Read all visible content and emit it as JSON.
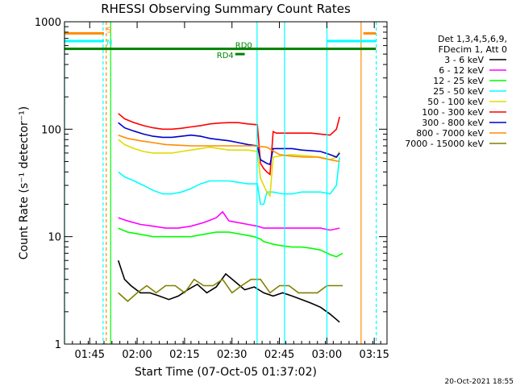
{
  "chart_data": {
    "type": "line",
    "title": "RHESSI Observing Summary Count Rates",
    "xlabel": "Start Time (07-Oct-05 01:37:02)",
    "ylabel": "Count Rate (s⁻¹ detector⁻¹)",
    "yscale": "log",
    "ylim": [
      1,
      1000
    ],
    "xlim_minutes_after_start": [
      0,
      102
    ],
    "x_tick_labels": [
      {
        "label": "01:45",
        "minute": 7.97
      },
      {
        "label": "02:00",
        "minute": 22.97
      },
      {
        "label": "02:15",
        "minute": 37.97
      },
      {
        "label": "02:30",
        "minute": 52.97
      },
      {
        "label": "02:45",
        "minute": 67.97
      },
      {
        "label": "03:00",
        "minute": 82.97
      },
      {
        "label": "03:15",
        "minute": 97.97
      }
    ],
    "y_tick_labels": [
      {
        "label": "1",
        "value": 1
      },
      {
        "label": "10",
        "value": 10
      },
      {
        "label": "100",
        "value": 100
      },
      {
        "label": "1000",
        "value": 1000
      }
    ],
    "legend_header": [
      "Det 1,3,4,5,6,9,",
      "FDecim 1, Att 0"
    ],
    "legend_position": "right",
    "series": [
      {
        "name": "3 - 6 keV",
        "color": "#000000",
        "x": [
          17,
          19,
          21,
          24,
          27,
          30,
          33,
          36,
          39,
          42,
          45,
          48,
          51,
          54,
          57,
          60,
          63,
          66,
          69,
          72,
          75,
          78,
          81,
          84,
          87
        ],
        "y": [
          6,
          4,
          3.5,
          3,
          3,
          2.8,
          2.6,
          2.8,
          3.2,
          3.6,
          3,
          3.4,
          4.5,
          3.8,
          3.2,
          3.4,
          3,
          2.8,
          3,
          2.8,
          2.6,
          2.4,
          2.2,
          1.9,
          1.6
        ]
      },
      {
        "name": "6 - 12 keV",
        "color": "#ff00ff",
        "x": [
          17,
          20,
          24,
          28,
          32,
          36,
          40,
          44,
          48,
          50,
          52,
          55,
          58,
          61,
          63,
          66,
          69,
          72,
          75,
          78,
          81,
          84,
          87
        ],
        "y": [
          15,
          14,
          13,
          12.5,
          12,
          12,
          12.5,
          13.5,
          15,
          17,
          14,
          13.5,
          13,
          12.5,
          12,
          12,
          12,
          12,
          12,
          12,
          12,
          11.5,
          12
        ]
      },
      {
        "name": "12 - 25 keV",
        "color": "#00ff00",
        "x": [
          17,
          20,
          24,
          28,
          32,
          36,
          40,
          44,
          48,
          52,
          56,
          60,
          62,
          63,
          66,
          69,
          72,
          75,
          78,
          81,
          84,
          86,
          88
        ],
        "y": [
          12,
          11,
          10.5,
          10,
          10,
          10,
          10,
          10.5,
          11,
          11,
          10.5,
          10,
          9.5,
          9,
          8.5,
          8.2,
          8,
          8,
          7.8,
          7.5,
          6.8,
          6.5,
          7
        ]
      },
      {
        "name": "25 - 50 keV",
        "color": "#00ffff",
        "x": [
          17,
          19,
          22,
          25,
          28,
          31,
          34,
          37,
          40,
          43,
          46,
          49,
          52,
          55,
          58,
          61,
          62,
          63,
          64,
          66,
          69,
          72,
          75,
          78,
          81,
          84,
          86,
          87
        ],
        "y": [
          40,
          36,
          33,
          30,
          27,
          25,
          25,
          26,
          28,
          31,
          33,
          33,
          33,
          32,
          31,
          31,
          20,
          20,
          26,
          26,
          25,
          25,
          26,
          26,
          26,
          25,
          30,
          55
        ]
      },
      {
        "name": "50 - 100 keV",
        "color": "#dddd00",
        "x": [
          17,
          19,
          22,
          25,
          28,
          31,
          34,
          37,
          40,
          43,
          46,
          49,
          52,
          55,
          58,
          61,
          62,
          63,
          64,
          65,
          66,
          69,
          72,
          75,
          78,
          81,
          84,
          86,
          87
        ],
        "y": [
          80,
          72,
          66,
          62,
          60,
          60,
          60,
          62,
          64,
          66,
          68,
          66,
          64,
          64,
          64,
          62,
          35,
          30,
          26,
          24,
          55,
          57,
          58,
          57,
          56,
          55,
          52,
          55,
          62
        ]
      },
      {
        "name": "100 - 300 keV",
        "color": "#ff0000",
        "x": [
          17,
          19,
          22,
          25,
          28,
          31,
          34,
          37,
          40,
          43,
          46,
          49,
          52,
          55,
          58,
          61,
          62,
          63,
          64,
          65,
          66,
          67,
          69,
          72,
          75,
          78,
          81,
          84,
          86,
          87
        ],
        "y": [
          140,
          125,
          115,
          108,
          103,
          100,
          100,
          102,
          105,
          108,
          112,
          114,
          115,
          115,
          112,
          110,
          48,
          43,
          40,
          38,
          95,
          92,
          92,
          92,
          92,
          92,
          90,
          88,
          100,
          130
        ]
      },
      {
        "name": "300 - 800 keV",
        "color": "#0000cc",
        "x": [
          17,
          19,
          22,
          25,
          28,
          31,
          34,
          37,
          40,
          43,
          46,
          49,
          52,
          55,
          58,
          61,
          62,
          63,
          64,
          65,
          66,
          69,
          72,
          75,
          78,
          81,
          84,
          86,
          87
        ],
        "y": [
          115,
          103,
          96,
          90,
          86,
          84,
          84,
          86,
          88,
          86,
          82,
          80,
          78,
          75,
          72,
          70,
          52,
          50,
          48,
          47,
          66,
          66,
          66,
          64,
          63,
          62,
          58,
          55,
          60
        ]
      },
      {
        "name": "800 - 7000 keV",
        "color": "#ff8c00",
        "x": [
          17,
          20,
          24,
          28,
          32,
          36,
          40,
          44,
          48,
          52,
          56,
          60,
          64,
          68,
          72,
          76,
          80,
          84,
          87
        ],
        "y": [
          88,
          82,
          78,
          75,
          72,
          71,
          70,
          70,
          70,
          70,
          70,
          70,
          68,
          58,
          56,
          55,
          55,
          52,
          50
        ]
      },
      {
        "name": "7000 - 15000 keV",
        "color": "#808000",
        "x": [
          17,
          20,
          23,
          26,
          29,
          32,
          35,
          38,
          41,
          44,
          47,
          50,
          53,
          56,
          59,
          62,
          65,
          68,
          71,
          74,
          77,
          80,
          83,
          86,
          88
        ],
        "y": [
          3,
          2.5,
          3,
          3.5,
          3,
          3.5,
          3.5,
          3,
          4,
          3.5,
          3.5,
          4,
          3,
          3.5,
          4,
          4,
          3,
          3.5,
          3.5,
          3,
          3,
          3,
          3.5,
          3.5,
          3.5
        ]
      }
    ],
    "bars": [
      {
        "label": "S",
        "color": "#ff8c00",
        "y": 780,
        "segments": [
          [
            0,
            12.5
          ],
          [
            94.5,
            98.5
          ]
        ]
      },
      {
        "label": "N",
        "color": "#00ffff",
        "y": 660,
        "segments": [
          [
            0,
            12.5
          ],
          [
            83,
            98.5
          ]
        ]
      },
      {
        "label": "RD0",
        "color": "#008000",
        "y": 560,
        "segments": [
          [
            0,
            98.5
          ]
        ]
      },
      {
        "label": "RD4",
        "color": "#008000",
        "y": 500,
        "segments": [
          [
            54,
            57
          ]
        ]
      }
    ],
    "vlines": [
      {
        "x": 0,
        "color": "#00ffff",
        "style": "solid"
      },
      {
        "x": 12.2,
        "color": "#00ffff",
        "style": "dashed"
      },
      {
        "x": 13.2,
        "color": "#ff8c00",
        "style": "dashed"
      },
      {
        "x": 14.6,
        "color": "#00ff00",
        "style": "solid"
      },
      {
        "x": 60.9,
        "color": "#00ffff",
        "style": "solid"
      },
      {
        "x": 69.6,
        "color": "#00ffff",
        "style": "solid"
      },
      {
        "x": 83.0,
        "color": "#00ffff",
        "style": "solid"
      },
      {
        "x": 93.8,
        "color": "#ff8c00",
        "style": "solid"
      },
      {
        "x": 98.6,
        "color": "#00ffff",
        "style": "dashed"
      }
    ]
  },
  "footer": {
    "timestamp": "20-Oct-2021 18:55"
  }
}
